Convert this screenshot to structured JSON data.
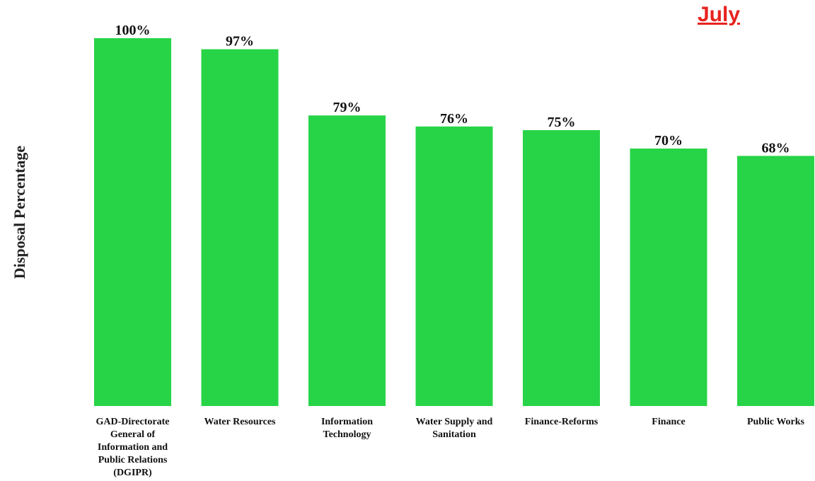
{
  "highlight": {
    "month": "July",
    "color": "#e8231f"
  },
  "chart_data": {
    "type": "bar",
    "title": "",
    "xlabel": "",
    "ylabel": "Disposal Percentage",
    "ylim": [
      0,
      100
    ],
    "grid": false,
    "bar_color": "#27d447",
    "categories": [
      [
        "GAD-Directorate",
        "General of",
        "Information and",
        "Public Relations",
        "(DGIPR)"
      ],
      [
        "Water Resources"
      ],
      [
        "Information",
        "Technology"
      ],
      [
        "Water Supply and",
        "Sanitation"
      ],
      [
        "Finance-Reforms"
      ],
      [
        "Finance"
      ],
      [
        "Public Works"
      ]
    ],
    "values": [
      100,
      97,
      79,
      76,
      75,
      70,
      68
    ],
    "data_labels": [
      "100%",
      "97%",
      "79%",
      "76%",
      "75%",
      "70%",
      "68%"
    ]
  }
}
